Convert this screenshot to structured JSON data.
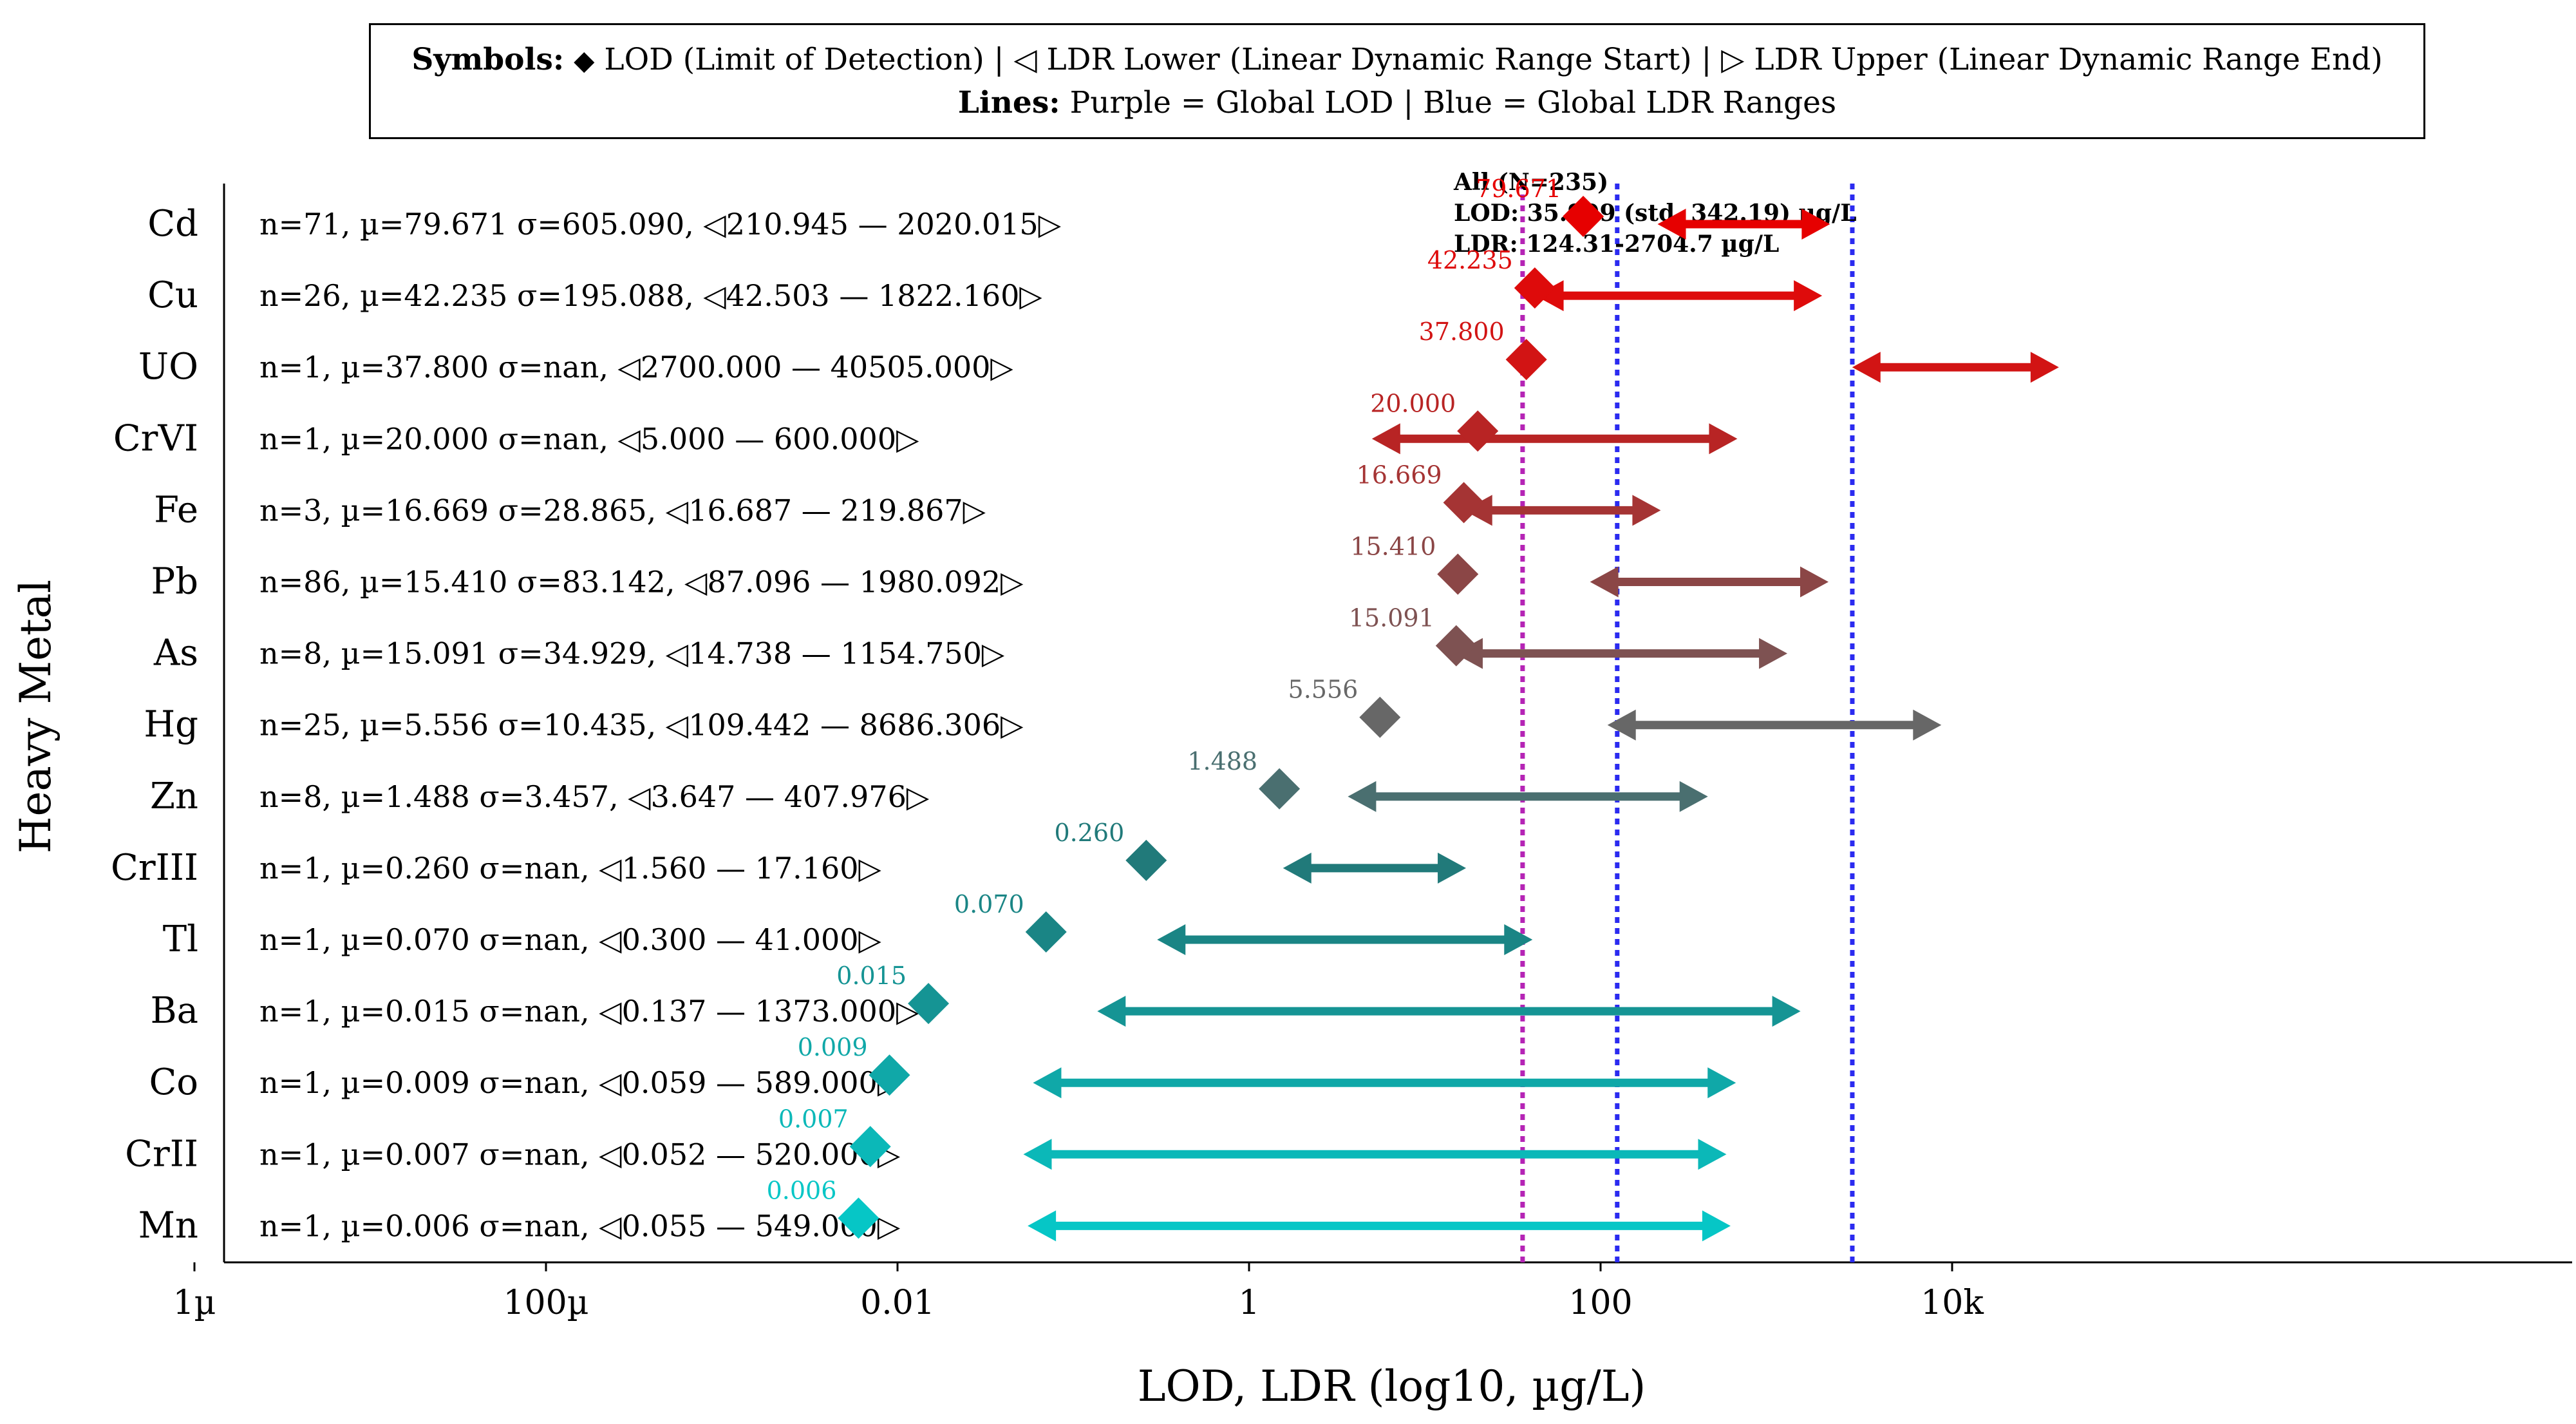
{
  "legend": {
    "symbols_label": "Symbols:",
    "symbols_text": " LOD (Limit of Detection) | ◁ LDR Lower (Linear Dynamic Range Start) | ▷ LDR Upper (Linear Dynamic Range End)",
    "symbols_diamond": "◆",
    "lines_label": "Lines:",
    "lines_text": " Purple = Global LOD | Blue = Global LDR Ranges"
  },
  "chart_data": {
    "type": "scatter",
    "title": "",
    "xlabel": "LOD, LDR (log10, µg/L)",
    "ylabel": "Heavy Metal",
    "x_scale": "log10",
    "xlim": [
      1e-08,
      300000
    ],
    "x_ticks": [
      {
        "value": 1e-06,
        "label": "1µ"
      },
      {
        "value": 0.0001,
        "label": "100µ"
      },
      {
        "value": 0.01,
        "label": "0.01"
      },
      {
        "value": 1,
        "label": "1"
      },
      {
        "value": 100,
        "label": "100"
      },
      {
        "value": 10000,
        "label": "10k"
      }
    ],
    "global": {
      "label_line1": "All (N=235)",
      "label_line2": "LOD: 35.999 (std. 342.19) µg/L",
      "label_line3": "LDR: 124.31-2704.7 µg/L",
      "lod": 35.999,
      "ldr_lower": 124.31,
      "ldr_upper": 2704.7,
      "lod_color": "#b524b5",
      "ldr_color": "#2b2bf0"
    },
    "metals": [
      {
        "name": "Cd",
        "stats": "n=71,  µ=79.671  σ=605.090, ◁210.945 — 2020.015▷",
        "lod": 79.671,
        "lod_label": "79.671",
        "ldr_lower": 210.945,
        "ldr_upper": 2020.015,
        "color": "#e60000"
      },
      {
        "name": "Cu",
        "stats": "n=26,  µ=42.235  σ=195.088, ◁42.503 — 1822.160▷",
        "lod": 42.235,
        "lod_label": "42.235",
        "ldr_lower": 42.503,
        "ldr_upper": 1822.16,
        "color": "#de0b0b"
      },
      {
        "name": "UO",
        "stats": "n=1,  µ=37.800  σ=nan, ◁2700.000 — 40505.000▷",
        "lod": 37.8,
        "lod_label": "37.800",
        "ldr_lower": 2700.0,
        "ldr_upper": 40505.0,
        "color": "#d21414"
      },
      {
        "name": "CrVI",
        "stats": "n=1,  µ=20.000  σ=nan, ◁5.000 — 600.000▷",
        "lod": 20.0,
        "lod_label": "20.000",
        "ldr_lower": 5.0,
        "ldr_upper": 600.0,
        "color": "#b82424"
      },
      {
        "name": "Fe",
        "stats": "n=3,  µ=16.669  σ=28.865, ◁16.687 — 219.867▷",
        "lod": 16.669,
        "lod_label": "16.669",
        "ldr_lower": 16.687,
        "ldr_upper": 219.867,
        "color": "#a53434"
      },
      {
        "name": "Pb",
        "stats": "n=86,  µ=15.410  σ=83.142, ◁87.096 — 1980.092▷",
        "lod": 15.41,
        "lod_label": "15.410",
        "ldr_lower": 87.096,
        "ldr_upper": 1980.092,
        "color": "#8b4646"
      },
      {
        "name": "As",
        "stats": "n=8,  µ=15.091  σ=34.929, ◁14.738 — 1154.750▷",
        "lod": 15.091,
        "lod_label": "15.091",
        "ldr_lower": 14.738,
        "ldr_upper": 1154.75,
        "color": "#7e5252"
      },
      {
        "name": "Hg",
        "stats": "n=25,  µ=5.556  σ=10.435, ◁109.442 — 8686.306▷",
        "lod": 5.556,
        "lod_label": "5.556",
        "ldr_lower": 109.442,
        "ldr_upper": 8686.306,
        "color": "#676767"
      },
      {
        "name": "Zn",
        "stats": "n=8,  µ=1.488  σ=3.457, ◁3.647 — 407.976▷",
        "lod": 1.488,
        "lod_label": "1.488",
        "ldr_lower": 3.647,
        "ldr_upper": 407.976,
        "color": "#4a6f70"
      },
      {
        "name": "CrIII",
        "stats": "n=1,  µ=0.260  σ=nan, ◁1.560 — 17.160▷",
        "lod": 0.26,
        "lod_label": "0.260",
        "ldr_lower": 1.56,
        "ldr_upper": 17.16,
        "color": "#217a7a"
      },
      {
        "name": "Tl",
        "stats": "n=1,  µ=0.070  σ=nan, ◁0.300 — 41.000▷",
        "lod": 0.07,
        "lod_label": "0.070",
        "ldr_lower": 0.3,
        "ldr_upper": 41.0,
        "color": "#1a8585"
      },
      {
        "name": "Ba",
        "stats": "n=1,  µ=0.015  σ=nan, ◁0.137 — 1373.000▷",
        "lod": 0.015,
        "lod_label": "0.015",
        "ldr_lower": 0.137,
        "ldr_upper": 1373.0,
        "color": "#159494"
      },
      {
        "name": "Co",
        "stats": "n=1,  µ=0.009  σ=nan, ◁0.059 — 589.000▷",
        "lod": 0.009,
        "lod_label": "0.009",
        "ldr_lower": 0.059,
        "ldr_upper": 589.0,
        "color": "#10a8a8"
      },
      {
        "name": "CrII",
        "stats": "n=1,  µ=0.007  σ=nan, ◁0.052 — 520.000▷",
        "lod": 0.007,
        "lod_label": "0.007",
        "ldr_lower": 0.052,
        "ldr_upper": 520.0,
        "color": "#0bb8b8"
      },
      {
        "name": "Mn",
        "stats": "n=1,  µ=0.006  σ=nan, ◁0.055 — 549.000▷",
        "lod": 0.006,
        "lod_label": "0.006",
        "ldr_lower": 0.055,
        "ldr_upper": 549.0,
        "color": "#06c6c6"
      }
    ]
  }
}
